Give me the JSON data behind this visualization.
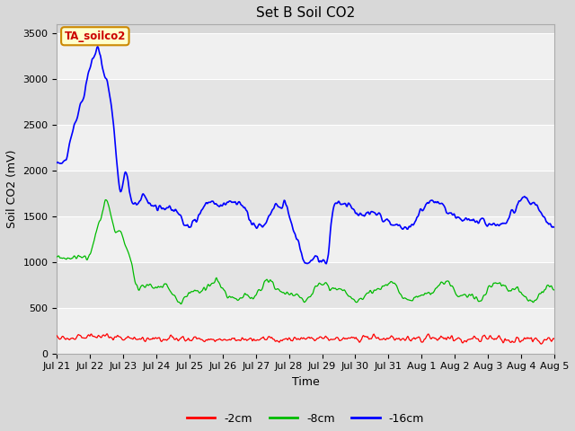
{
  "title": "Set B Soil CO2",
  "ylabel": "Soil CO2 (mV)",
  "xlabel": "Time",
  "annotation_text": "TA_soilco2",
  "annotation_bg": "#ffffcc",
  "annotation_edge": "#cc8800",
  "annotation_text_color": "#cc0000",
  "legend_labels": [
    "-2cm",
    "-8cm",
    "-16cm"
  ],
  "line_colors": [
    "#ff0000",
    "#00bb00",
    "#0000ff"
  ],
  "ylim": [
    0,
    3600
  ],
  "yticks": [
    0,
    500,
    1000,
    1500,
    2000,
    2500,
    3000,
    3500
  ],
  "band_colors": [
    "#f0f0f0",
    "#e4e4e4"
  ],
  "fig_bg": "#d8d8d8",
  "title_fontsize": 11,
  "axis_label_fontsize": 9,
  "tick_fontsize": 8
}
